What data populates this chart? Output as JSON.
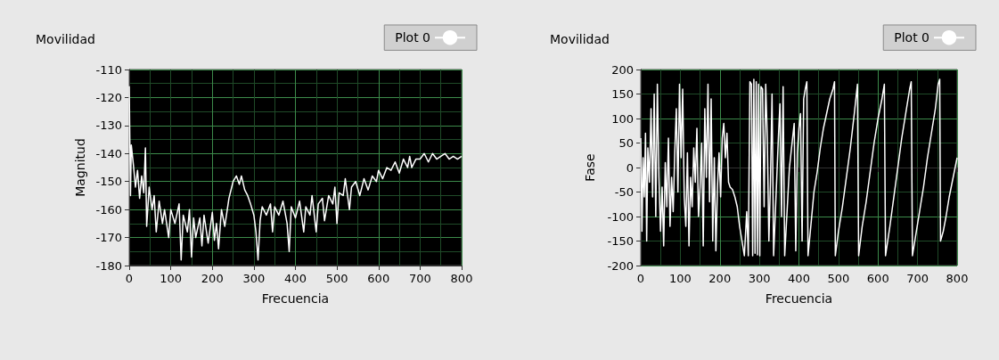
{
  "chart_data": [
    {
      "type": "line",
      "title": "Movilidad",
      "xlabel": "Frecuencia",
      "ylabel": "Magnitud",
      "xlim": [
        0,
        800
      ],
      "xticks": [
        0,
        100,
        200,
        300,
        400,
        500,
        600,
        700,
        800
      ],
      "ylim": [
        -180,
        -110
      ],
      "yticks": [
        -180,
        -170,
        -160,
        -150,
        -140,
        -130,
        -120,
        -110
      ],
      "grid": true,
      "legend": "top right",
      "marker": "none",
      "line_style": "solid",
      "series": [
        {
          "name": "Plot 0",
          "color": "#ffffff",
          "x": [
            0,
            3,
            5,
            10,
            15,
            20,
            25,
            30,
            35,
            39,
            42,
            48,
            55,
            60,
            65,
            72,
            80,
            85,
            95,
            100,
            110,
            120,
            125,
            130,
            140,
            145,
            150,
            155,
            160,
            170,
            175,
            180,
            190,
            200,
            205,
            210,
            215,
            222,
            230,
            240,
            250,
            258,
            265,
            270,
            278,
            285,
            292,
            300,
            305,
            310,
            315,
            320,
            330,
            340,
            345,
            350,
            360,
            370,
            380,
            385,
            390,
            400,
            410,
            420,
            425,
            435,
            440,
            450,
            455,
            465,
            470,
            480,
            490,
            495,
            500,
            505,
            515,
            520,
            530,
            535,
            545,
            555,
            565,
            575,
            585,
            595,
            600,
            610,
            620,
            630,
            640,
            650,
            660,
            670,
            675,
            680,
            690,
            700,
            710,
            720,
            730,
            740,
            750,
            760,
            770,
            780,
            790,
            800
          ],
          "values": [
            -116,
            -155,
            -137,
            -144,
            -152,
            -146,
            -156,
            -148,
            -154,
            -138,
            -166,
            -152,
            -160,
            -155,
            -168,
            -157,
            -165,
            -160,
            -170,
            -160,
            -165,
            -158,
            -178,
            -162,
            -168,
            -160,
            -177,
            -163,
            -170,
            -163,
            -173,
            -162,
            -172,
            -161,
            -171,
            -165,
            -174,
            -160,
            -166,
            -156,
            -150,
            -148,
            -151,
            -148,
            -153,
            -155,
            -158,
            -162,
            -168,
            -178,
            -164,
            -159,
            -162,
            -158,
            -168,
            -159,
            -162,
            -157,
            -165,
            -175,
            -159,
            -163,
            -157,
            -168,
            -159,
            -162,
            -155,
            -168,
            -158,
            -156,
            -164,
            -155,
            -158,
            -152,
            -165,
            -154,
            -155,
            -149,
            -160,
            -152,
            -150,
            -155,
            -149,
            -153,
            -148,
            -150,
            -146,
            -149,
            -145,
            -146,
            -143,
            -147,
            -142,
            -145,
            -141,
            -145,
            -142,
            -142,
            -140,
            -143,
            -140,
            -142,
            -141,
            -140,
            -142,
            -141,
            -142,
            -141
          ]
        }
      ]
    },
    {
      "type": "line",
      "title": "Movilidad",
      "xlabel": "Frecuencia",
      "ylabel": "Fase",
      "xlim": [
        0,
        800
      ],
      "xticks": [
        0,
        100,
        200,
        300,
        400,
        500,
        600,
        700,
        800
      ],
      "ylim": [
        -200,
        200
      ],
      "yticks": [
        -200,
        -150,
        -100,
        -50,
        0,
        50,
        100,
        150,
        200
      ],
      "grid": true,
      "legend": "top right",
      "marker": "none",
      "line_style": "solid",
      "series": [
        {
          "name": "Plot 0",
          "color": "#ffffff",
          "x": [
            0,
            3,
            6,
            9,
            12,
            15,
            18,
            22,
            26,
            30,
            34,
            38,
            42,
            46,
            50,
            54,
            58,
            62,
            66,
            70,
            74,
            78,
            82,
            86,
            90,
            94,
            98,
            102,
            106,
            110,
            114,
            118,
            122,
            126,
            130,
            134,
            138,
            142,
            146,
            150,
            154,
            158,
            162,
            166,
            170,
            174,
            178,
            182,
            186,
            190,
            194,
            198,
            202,
            206,
            210,
            214,
            218,
            222,
            226,
            232,
            238,
            244,
            250,
            256,
            262,
            268,
            272,
            276,
            280,
            283,
            286,
            289,
            292,
            295,
            298,
            301,
            304,
            308,
            312,
            316,
            320,
            324,
            328,
            332,
            336,
            340,
            344,
            348,
            352,
            356,
            360,
            364,
            368,
            372,
            376,
            380,
            384,
            388,
            392,
            396,
            400,
            404,
            408,
            412,
            416,
            420,
            423,
            430,
            438,
            446,
            454,
            462,
            470,
            478,
            486,
            490,
            492,
            500,
            510,
            520,
            530,
            540,
            548,
            551,
            560,
            570,
            580,
            590,
            600,
            610,
            616,
            619,
            630,
            640,
            650,
            660,
            670,
            680,
            684,
            687,
            695,
            705,
            715,
            725,
            735,
            745,
            752,
            756,
            758,
            765,
            772,
            780,
            790,
            800
          ],
          "values": [
            60,
            -130,
            20,
            -60,
            70,
            -150,
            40,
            -30,
            120,
            -60,
            150,
            -100,
            170,
            -20,
            -130,
            -40,
            -160,
            10,
            -80,
            60,
            -120,
            -20,
            -90,
            30,
            120,
            -50,
            170,
            20,
            160,
            -60,
            -120,
            30,
            -160,
            -20,
            -80,
            40,
            -30,
            80,
            -100,
            -40,
            50,
            -160,
            120,
            -20,
            170,
            -70,
            140,
            -150,
            20,
            -170,
            -40,
            30,
            -60,
            60,
            90,
            20,
            70,
            -30,
            -40,
            -45,
            -60,
            -80,
            -120,
            -150,
            -180,
            -90,
            -180,
            175,
            170,
            -180,
            180,
            -175,
            175,
            -178,
            170,
            -180,
            165,
            160,
            -80,
            170,
            60,
            -150,
            -30,
            150,
            -180,
            -100,
            -20,
            60,
            130,
            -100,
            165,
            -180,
            -120,
            -60,
            0,
            30,
            60,
            90,
            -170,
            30,
            80,
            110,
            -150,
            140,
            160,
            175,
            -180,
            -120,
            -50,
            -10,
            40,
            80,
            110,
            140,
            160,
            175,
            -180,
            -130,
            -80,
            -20,
            40,
            110,
            170,
            -180,
            -120,
            -70,
            -10,
            50,
            100,
            140,
            170,
            -180,
            -120,
            -60,
            0,
            60,
            110,
            160,
            175,
            -180,
            -140,
            -90,
            -40,
            20,
            70,
            120,
            170,
            180,
            -150,
            -130,
            -100,
            -60,
            -20,
            20
          ]
        }
      ]
    }
  ]
}
